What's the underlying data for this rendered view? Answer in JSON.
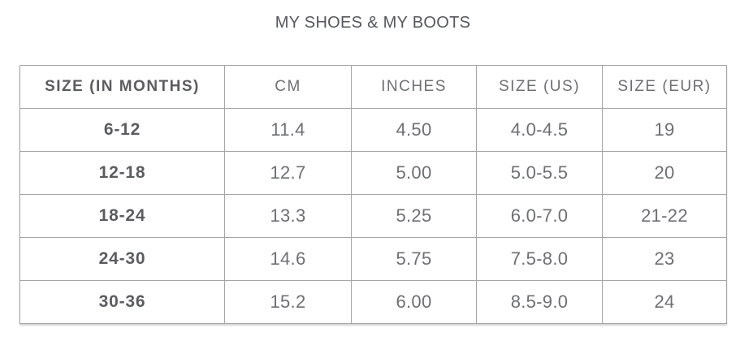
{
  "chart_data": {
    "type": "table",
    "title": "MY SHOES & MY BOOTS",
    "columns": [
      "SIZE (IN MONTHS)",
      "CM",
      "INCHES",
      "SIZE (US)",
      "SIZE (EUR)"
    ],
    "rows": [
      [
        "6-12",
        "11.4",
        "4.50",
        "4.0-4.5",
        "19"
      ],
      [
        "12-18",
        "12.7",
        "5.00",
        "5.0-5.5",
        "20"
      ],
      [
        "18-24",
        "13.3",
        "5.25",
        "6.0-7.0",
        "21-22"
      ],
      [
        "24-30",
        "14.6",
        "5.75",
        "7.5-8.0",
        "23"
      ],
      [
        "30-36",
        "15.2",
        "6.00",
        "8.5-9.0",
        "24"
      ]
    ]
  },
  "colors": {
    "background": "#ffffff",
    "title_text": "#54575c",
    "header_text": "#6d6f71",
    "bold_text": "#5a5c5e",
    "grid_border": "#a5a5a5",
    "outer_border": "#8c8c8c"
  }
}
